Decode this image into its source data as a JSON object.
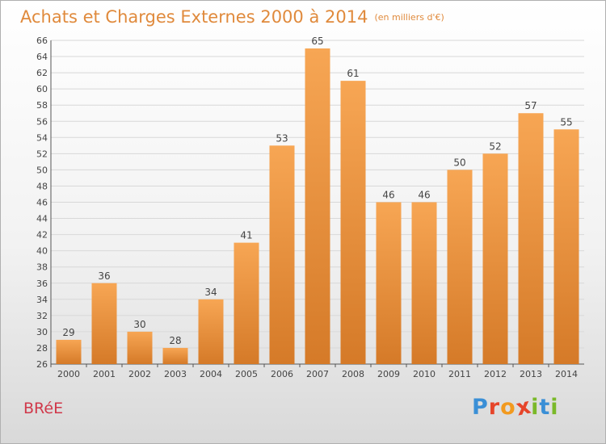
{
  "header": {
    "title": "Achats et Charges Externes 2000 à 2014",
    "subtitle": "(en milliers d'€)"
  },
  "footer": {
    "commune": "BRéE",
    "logo_text": "Proxiti",
    "logo_icon": "proxiti-logo",
    "logo_colors": [
      "#3a8fd6",
      "#e6452a",
      "#f29a1f",
      "#e6452a",
      "#7ab929",
      "#3a8fd6",
      "#7ab929"
    ]
  },
  "colors": {
    "bar_light": "#f7a654",
    "bar_dark": "#d57a28",
    "title": "#e08a3c",
    "commune": "#d0384a",
    "grid": "#d8d8d8"
  },
  "chart_data": {
    "type": "bar",
    "title": "Achats et Charges Externes 2000 à 2014",
    "subtitle": "(en milliers d'€)",
    "categories": [
      "2000",
      "2001",
      "2002",
      "2003",
      "2004",
      "2005",
      "2006",
      "2007",
      "2008",
      "2009",
      "2010",
      "2011",
      "2012",
      "2013",
      "2014"
    ],
    "values": [
      29,
      36,
      30,
      28,
      34,
      41,
      53,
      65,
      61,
      46,
      46,
      50,
      52,
      57,
      55
    ],
    "data_labels": [
      "29",
      "36",
      "30",
      "28",
      "34",
      "41",
      "53",
      "65",
      "61",
      "46",
      "46",
      "50",
      "52",
      "57",
      "55"
    ],
    "yticks": [
      "26",
      "28",
      "30",
      "32",
      "34",
      "36",
      "38",
      "40",
      "42",
      "44",
      "46",
      "48",
      "50",
      "52",
      "54",
      "56",
      "58",
      "60",
      "62",
      "64",
      "66"
    ],
    "ylim": [
      26,
      66
    ],
    "grid": true,
    "legend": "none"
  }
}
